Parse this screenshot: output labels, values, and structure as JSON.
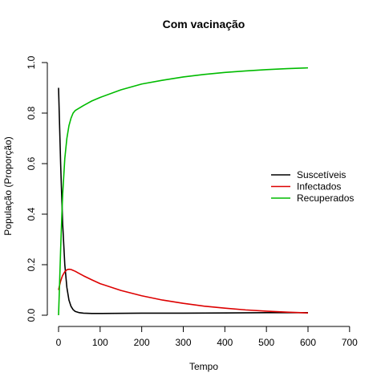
{
  "chart_data": {
    "type": "line",
    "title": "Com vacinação",
    "xlabel": "Tempo",
    "ylabel": "População (Proporção)",
    "xlim": [
      0,
      700
    ],
    "ylim": [
      0.0,
      1.0
    ],
    "x_ticks": [
      "0",
      "100",
      "200",
      "300",
      "400",
      "500",
      "600",
      "700"
    ],
    "y_ticks": [
      "0.0",
      "0.2",
      "0.4",
      "0.6",
      "0.8",
      "1.0"
    ],
    "grid": false,
    "legend_position": "right",
    "series": [
      {
        "name": "Suscetíveis",
        "color": "#000000",
        "x": [
          0,
          2,
          5,
          8,
          10,
          15,
          20,
          25,
          30,
          35,
          40,
          50,
          60,
          80,
          100,
          200,
          300,
          400,
          500,
          600
        ],
        "y": [
          0.9,
          0.78,
          0.6,
          0.45,
          0.36,
          0.2,
          0.11,
          0.06,
          0.035,
          0.022,
          0.015,
          0.01,
          0.008,
          0.007,
          0.007,
          0.008,
          0.008,
          0.009,
          0.01,
          0.01
        ]
      },
      {
        "name": "Infectados",
        "color": "#dd0000",
        "x": [
          0,
          2,
          5,
          8,
          10,
          15,
          20,
          25,
          30,
          40,
          50,
          60,
          80,
          100,
          150,
          200,
          250,
          300,
          350,
          400,
          450,
          500,
          550,
          600
        ],
        "y": [
          0.1,
          0.115,
          0.135,
          0.15,
          0.158,
          0.172,
          0.18,
          0.182,
          0.181,
          0.174,
          0.165,
          0.156,
          0.14,
          0.125,
          0.098,
          0.077,
          0.06,
          0.047,
          0.036,
          0.028,
          0.021,
          0.016,
          0.012,
          0.009
        ]
      },
      {
        "name": "Recuperados",
        "color": "#00bb00",
        "x": [
          0,
          2,
          5,
          8,
          10,
          15,
          20,
          25,
          30,
          35,
          40,
          50,
          60,
          80,
          100,
          150,
          200,
          250,
          300,
          350,
          400,
          450,
          500,
          550,
          600
        ],
        "y": [
          0.0,
          0.1,
          0.26,
          0.4,
          0.48,
          0.62,
          0.7,
          0.75,
          0.78,
          0.8,
          0.81,
          0.82,
          0.83,
          0.848,
          0.862,
          0.892,
          0.915,
          0.93,
          0.943,
          0.953,
          0.961,
          0.967,
          0.972,
          0.976,
          0.979
        ]
      }
    ]
  }
}
